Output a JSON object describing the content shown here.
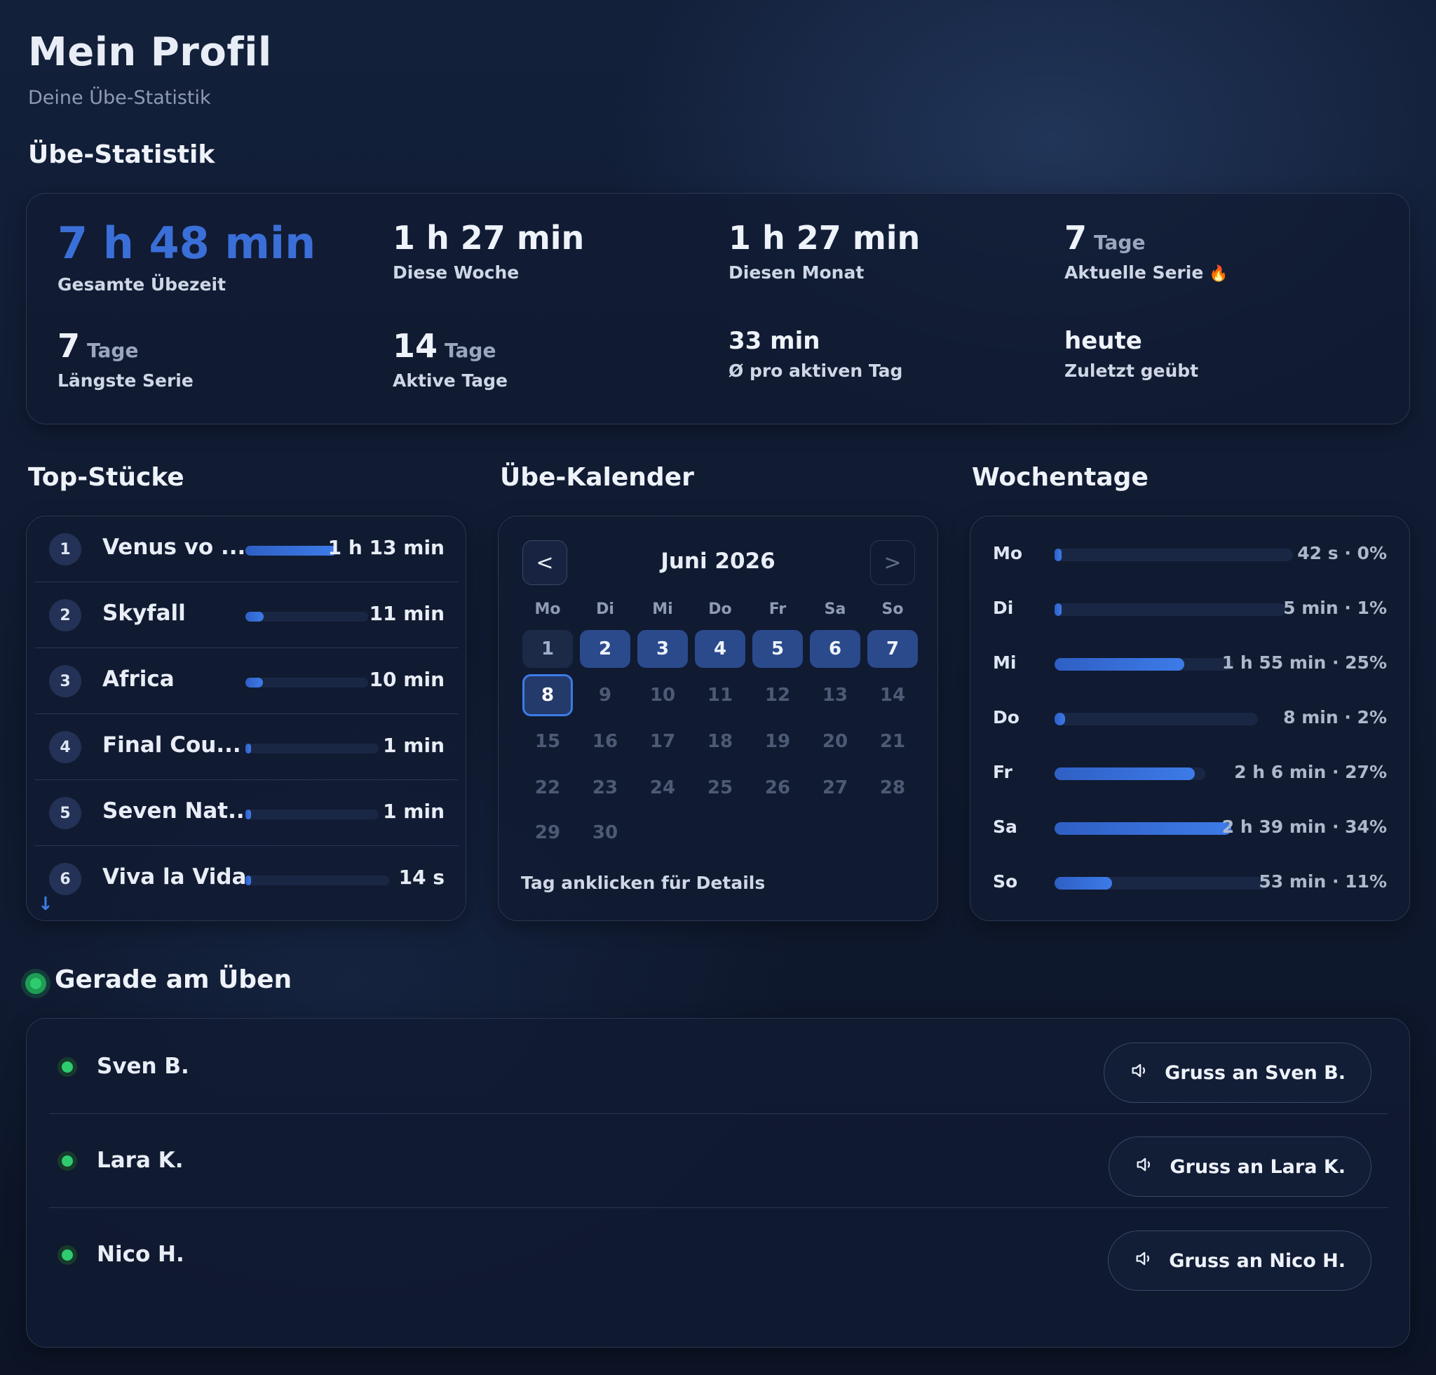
{
  "header": {
    "title": "Mein Profil",
    "subtitle": "Deine Übe-Statistik"
  },
  "stats": {
    "heading": "Übe-Statistik",
    "items": [
      {
        "value": "7 h 48 min",
        "unit": "",
        "label": "Gesamte Übezeit"
      },
      {
        "value": "1 h 27 min",
        "unit": "",
        "label": "Diese Woche"
      },
      {
        "value": "1 h 27 min",
        "unit": "",
        "label": "Diesen Monat"
      },
      {
        "value": "7",
        "unit": "Tage",
        "label": "Aktuelle Serie",
        "icon": "flame-icon",
        "icon_glyph": "🔥"
      },
      {
        "value": "7",
        "unit": "Tage",
        "label": "Längste Serie"
      },
      {
        "value": "14",
        "unit": "Tage",
        "label": "Aktive Tage"
      },
      {
        "value": "33 min",
        "unit": "",
        "label": "Ø pro aktiven Tag"
      },
      {
        "value": "heute",
        "unit": "",
        "label": "Zuletzt geübt"
      }
    ]
  },
  "top_pieces": {
    "heading": "Top-Stücke",
    "items": [
      {
        "rank": "1",
        "name": "Venus vo ...",
        "time": "1 h 13 min",
        "fraction": 1.0
      },
      {
        "rank": "2",
        "name": "Skyfall",
        "time": "11 min",
        "fraction": 0.15
      },
      {
        "rank": "3",
        "name": "Africa",
        "time": "10 min",
        "fraction": 0.14
      },
      {
        "rank": "4",
        "name": "Final Cou...",
        "time": "1 min",
        "fraction": 0.02
      },
      {
        "rank": "5",
        "name": "Seven Nat...",
        "time": "1 min",
        "fraction": 0.02
      },
      {
        "rank": "6",
        "name": "Viva la Vida",
        "time": "14 s",
        "fraction": 0.01
      }
    ]
  },
  "calendar": {
    "heading": "Übe-Kalender",
    "month": "Juni 2026",
    "prev_label": "<",
    "next_label": ">",
    "weekdays": [
      "Mo",
      "Di",
      "Mi",
      "Do",
      "Fr",
      "Sa",
      "So"
    ],
    "days": [
      "1",
      "2",
      "3",
      "4",
      "5",
      "6",
      "7",
      "8",
      "9",
      "10",
      "11",
      "12",
      "13",
      "14",
      "15",
      "16",
      "17",
      "18",
      "19",
      "20",
      "21",
      "22",
      "23",
      "24",
      "25",
      "26",
      "27",
      "28",
      "29",
      "30"
    ],
    "practiced_days": [
      "2",
      "3",
      "4",
      "5",
      "6",
      "7"
    ],
    "light_days": [
      "1"
    ],
    "today": "8",
    "hint": "Tag anklicken für Details"
  },
  "weekdays": {
    "heading": "Wochentage",
    "items": [
      {
        "day": "Mo",
        "value": "42 s · 0%",
        "fraction": 0.0
      },
      {
        "day": "Di",
        "value": "5 min · 1%",
        "fraction": 0.01
      },
      {
        "day": "Mi",
        "value": "1 h 55 min · 25%",
        "fraction": 0.25
      },
      {
        "day": "Do",
        "value": "8 min · 2%",
        "fraction": 0.02
      },
      {
        "day": "Fr",
        "value": "2 h 6 min · 27%",
        "fraction": 0.27
      },
      {
        "day": "Sa",
        "value": "2 h 39 min · 34%",
        "fraction": 0.34
      },
      {
        "day": "So",
        "value": "53 min · 11%",
        "fraction": 0.11
      }
    ]
  },
  "live": {
    "heading": "Gerade am Üben",
    "people": [
      {
        "name": "Sven B.",
        "button": "Gruss an Sven B."
      },
      {
        "name": "Lara K.",
        "button": "Gruss an Lara K."
      },
      {
        "name": "Nico H.",
        "button": "Gruss an Nico H."
      }
    ]
  },
  "colors": {
    "accent": "#3d7be8",
    "online": "#2ecc6f",
    "background": "#101a30"
  }
}
